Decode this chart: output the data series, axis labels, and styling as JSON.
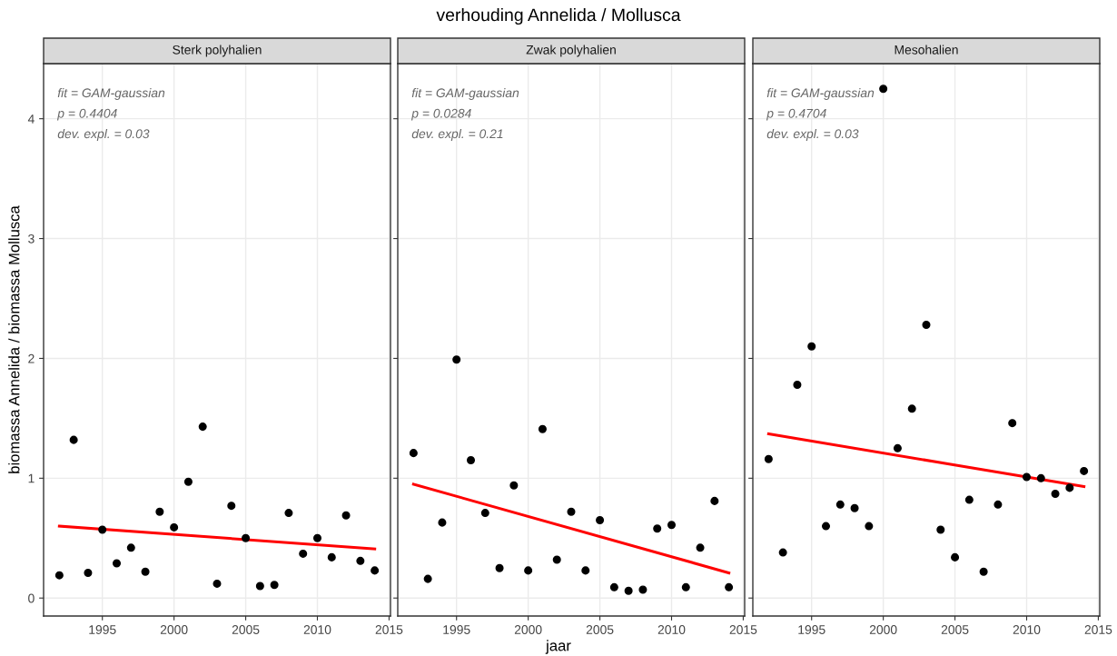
{
  "chart_data": [
    {
      "type": "scatter",
      "subtitle": "Sterk polyhalien",
      "ylabel": "biomassa Annelida / biomassa Mollusca",
      "xlim": [
        1990.9,
        2015.1
      ],
      "ylim": [
        -0.15,
        4.46
      ],
      "xticks": [
        1995,
        2000,
        2005,
        2010,
        2015
      ],
      "yticks": [
        0,
        1,
        2,
        3,
        4
      ],
      "grid": true,
      "annotations": [
        "fit = GAM-gaussian",
        "p = 0.4404",
        "dev. expl. = 0.03"
      ],
      "series": [
        {
          "color": "#000000",
          "marker": "circle",
          "x": [
            1992,
            1993,
            1994,
            1995,
            1996,
            1997,
            1998,
            1999,
            2000,
            2001,
            2002,
            2003,
            2004,
            2005,
            2006,
            2007,
            2008,
            2009,
            2010,
            2011,
            2012,
            2013,
            2014
          ],
          "values": [
            0.19,
            1.32,
            0.21,
            0.57,
            0.29,
            0.42,
            0.22,
            0.72,
            0.59,
            0.97,
            1.43,
            0.12,
            0.77,
            0.5,
            0.1,
            0.11,
            0.71,
            0.37,
            0.5,
            0.34,
            0.69,
            0.31,
            0.23
          ]
        },
        {
          "type": "line",
          "color": "#ff0000",
          "x": [
            1992,
            2014
          ],
          "values": [
            0.6,
            0.41
          ]
        }
      ]
    },
    {
      "type": "scatter",
      "title": "verhouding Annelida / Mollusca",
      "subtitle": "Zwak polyhalien",
      "xlabel": "jaar",
      "xlim": [
        1990.9,
        2015.1
      ],
      "ylim": [
        -0.15,
        4.46
      ],
      "xticks": [
        1995,
        2000,
        2005,
        2010,
        2015
      ],
      "yticks": [
        0,
        1,
        2,
        3,
        4
      ],
      "grid": true,
      "tick_labels": "x",
      "annotations": [
        "fit = GAM-gaussian",
        "p = 0.0284",
        "dev. expl. = 0.21"
      ],
      "series": [
        {
          "color": "#000000",
          "marker": "circle",
          "x": [
            1992,
            1993,
            1994,
            1995,
            1996,
            1997,
            1998,
            1999,
            2000,
            2001,
            2002,
            2003,
            2004,
            2005,
            2006,
            2007,
            2008,
            2009,
            2010,
            2011,
            2012,
            2013,
            2014
          ],
          "values": [
            1.21,
            0.16,
            0.63,
            1.99,
            1.15,
            0.71,
            0.25,
            0.94,
            0.23,
            1.41,
            0.32,
            0.72,
            0.23,
            0.65,
            0.09,
            0.06,
            0.07,
            0.58,
            0.61,
            0.09,
            0.42,
            0.81,
            0.09
          ]
        },
        {
          "type": "line",
          "color": "#ff0000",
          "x": [
            1992,
            2014
          ],
          "values": [
            0.95,
            0.21
          ]
        }
      ]
    },
    {
      "type": "scatter",
      "subtitle": "Mesohalien",
      "xlim": [
        1990.9,
        2015.1
      ],
      "ylim": [
        -0.15,
        4.46
      ],
      "xticks": [
        1995,
        2000,
        2005,
        2010,
        2015
      ],
      "yticks": [
        0,
        1,
        2,
        3,
        4
      ],
      "grid": true,
      "tick_labels": "x",
      "annotations": [
        "fit = GAM-gaussian",
        "p = 0.4704",
        "dev. expl. = 0.03"
      ],
      "series": [
        {
          "color": "#000000",
          "marker": "circle",
          "x": [
            1992,
            1993,
            1994,
            1995,
            1996,
            1997,
            1998,
            1999,
            2000,
            2001,
            2002,
            2003,
            2004,
            2005,
            2006,
            2007,
            2008,
            2009,
            2010,
            2011,
            2012,
            2013,
            2014
          ],
          "values": [
            1.16,
            0.38,
            1.78,
            2.1,
            0.6,
            0.78,
            0.75,
            0.6,
            4.25,
            1.25,
            1.58,
            2.28,
            0.57,
            0.34,
            0.82,
            0.22,
            0.78,
            1.46,
            1.01,
            1.0,
            0.87,
            0.92,
            1.06
          ]
        },
        {
          "type": "line",
          "color": "#ff0000",
          "x": [
            1992,
            2014
          ],
          "values": [
            1.37,
            0.93
          ]
        }
      ]
    }
  ]
}
